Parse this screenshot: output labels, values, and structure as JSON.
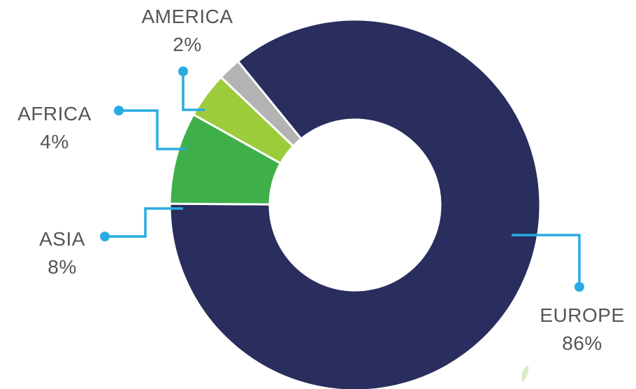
{
  "chart_data": {
    "type": "pie",
    "donut": true,
    "categories": [
      "EUROPE",
      "ASIA",
      "AFRICA",
      "AMERICA"
    ],
    "values": [
      86,
      8,
      4,
      2
    ],
    "value_labels": [
      "86%",
      "8%",
      "4%",
      "2%"
    ],
    "colors": [
      "#292e5e",
      "#3fb049",
      "#9ccc3c",
      "#b3b3b3"
    ],
    "leader_color": "#29abe2",
    "label_color": "#555555",
    "legend": "none"
  }
}
